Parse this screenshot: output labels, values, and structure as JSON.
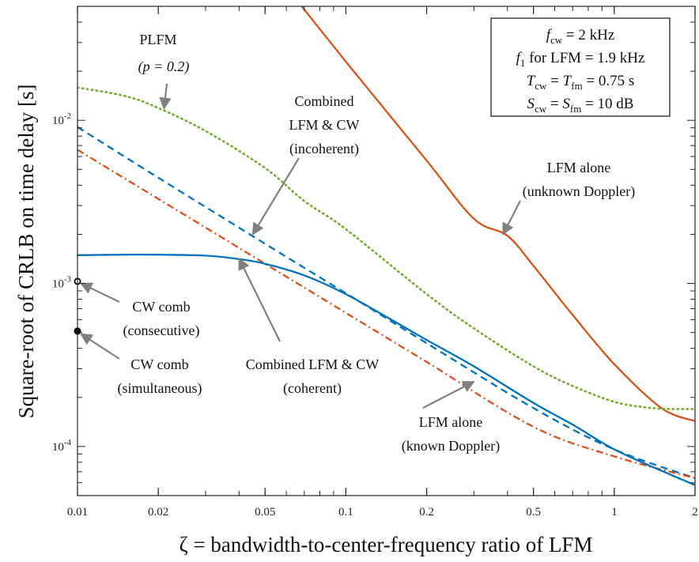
{
  "chart_data": {
    "type": "line",
    "xlabel": "ζ = bandwidth-to-center-frequency ratio of LFM",
    "ylabel": "Square-root of CRLB on time delay [s]",
    "xscale": "log",
    "yscale": "log",
    "xlim": [
      0.01,
      2
    ],
    "ylim": [
      5e-05,
      0.05
    ],
    "xticks": [
      {
        "value": 0.01,
        "label": "0.01"
      },
      {
        "value": 0.02,
        "label": "0.02"
      },
      {
        "value": 0.05,
        "label": "0.05"
      },
      {
        "value": 0.1,
        "label": "0.1"
      },
      {
        "value": 0.2,
        "label": "0.2"
      },
      {
        "value": 0.5,
        "label": "0.5"
      },
      {
        "value": 1,
        "label": "1"
      },
      {
        "value": 2,
        "label": "2"
      }
    ],
    "yticks": [
      {
        "value": 0.0001,
        "base": "10",
        "exp": "-4"
      },
      {
        "value": 0.001,
        "base": "10",
        "exp": "-3"
      },
      {
        "value": 0.01,
        "base": "10",
        "exp": "-2"
      }
    ],
    "grid": false,
    "series": [
      {
        "id": "lfm-unknown",
        "color": "#D95319",
        "dash": "solid",
        "x": [
          0.0685,
          0.1,
          0.2,
          0.3,
          0.4,
          0.5,
          0.7,
          1.0,
          1.5,
          2.0
        ],
        "y": [
          0.05,
          0.0229,
          0.00566,
          0.00249,
          0.00196,
          0.00128,
          0.00064,
          0.00032,
          0.000172,
          0.000143
        ]
      },
      {
        "id": "plfm",
        "color": "#77AC30",
        "dash": "dotted",
        "x": [
          0.01,
          0.015,
          0.02,
          0.03,
          0.05,
          0.07,
          0.1,
          0.2,
          0.3,
          0.5,
          0.7,
          1.0,
          1.3,
          1.6,
          2.0
        ],
        "y": [
          0.0159,
          0.0141,
          0.0119,
          0.0086,
          0.0051,
          0.0032,
          0.00215,
          0.00086,
          0.00053,
          0.00031,
          0.000235,
          0.000188,
          0.000174,
          0.00017,
          0.00017
        ]
      },
      {
        "id": "combined-incoherent",
        "color": "#0072BD",
        "dash": "dashed",
        "x": [
          0.01,
          0.02,
          0.05,
          0.1,
          0.2,
          0.5,
          1.0,
          2.0
        ],
        "y": [
          0.0091,
          0.00445,
          0.00175,
          0.00087,
          0.00043,
          0.000172,
          9.6e-05,
          6.4e-05
        ]
      },
      {
        "id": "lfm-known",
        "color": "#D95319",
        "dash": "dashdot",
        "x": [
          0.01,
          0.02,
          0.05,
          0.1,
          0.2,
          0.5,
          1.0,
          2.0
        ],
        "y": [
          0.0066,
          0.0033,
          0.00132,
          0.00066,
          0.00033,
          0.000132,
          8.7e-05,
          6.4e-05
        ]
      },
      {
        "id": "combined-coherent",
        "color": "#0072BD",
        "dash": "solid",
        "x": [
          0.01,
          0.015,
          0.02,
          0.03,
          0.04,
          0.05,
          0.07,
          0.1,
          0.15,
          0.2,
          0.3,
          0.5,
          0.7,
          1.0,
          1.5,
          2.0
        ],
        "y": [
          0.00149,
          0.0015,
          0.0015,
          0.00148,
          0.00141,
          0.00132,
          0.00112,
          0.00086,
          0.00059,
          0.00045,
          0.00031,
          0.000185,
          0.000136,
          9.6e-05,
          7.1e-05,
          5.8e-05
        ]
      }
    ],
    "points": [
      {
        "id": "cw-consecutive",
        "x": 0.01,
        "y": 0.00103,
        "fill": "none"
      },
      {
        "id": "cw-simultaneous",
        "x": 0.01,
        "y": 0.00051,
        "fill": "#000000"
      }
    ],
    "annotations": [
      {
        "id": "plfm",
        "lines": [
          "PLFM",
          "(p = 0.2)"
        ],
        "arrow_to": {
          "x": 0.021,
          "y": 0.0118
        }
      },
      {
        "id": "combined-incoherent",
        "lines": [
          "Combined",
          "LFM & CW",
          "(incoherent)"
        ],
        "arrow_to": {
          "x": 0.045,
          "y": 0.002
        }
      },
      {
        "id": "lfm-unknown",
        "lines": [
          "LFM alone",
          "(unknown Doppler)"
        ],
        "arrow_to": {
          "x": 0.385,
          "y": 0.002
        }
      },
      {
        "id": "cw-consecutive",
        "lines": [
          "CW comb",
          "(consecutive)"
        ],
        "arrow_to": {
          "x": 0.0103,
          "y": 0.001
        }
      },
      {
        "id": "cw-simultaneous",
        "lines": [
          "CW comb",
          "(simultaneous)"
        ],
        "arrow_to": {
          "x": 0.0103,
          "y": 0.00049
        }
      },
      {
        "id": "combined-coherent",
        "lines": [
          "Combined LFM & CW",
          "(coherent)"
        ],
        "arrow_to": {
          "x": 0.04,
          "y": 0.00142
        }
      },
      {
        "id": "lfm-known",
        "lines": [
          "LFM alone",
          "(known Doppler)"
        ],
        "arrow_to": {
          "x": 0.3,
          "y": 0.00025
        }
      }
    ],
    "info_box": {
      "placement": "top-right",
      "lines": [
        "f_cw = 2 kHz",
        "f_1 for LFM = 1.9 kHz",
        "T_cw = T_fm = 0.75 s",
        "S_cw = S_fm = 10 dB"
      ]
    }
  }
}
